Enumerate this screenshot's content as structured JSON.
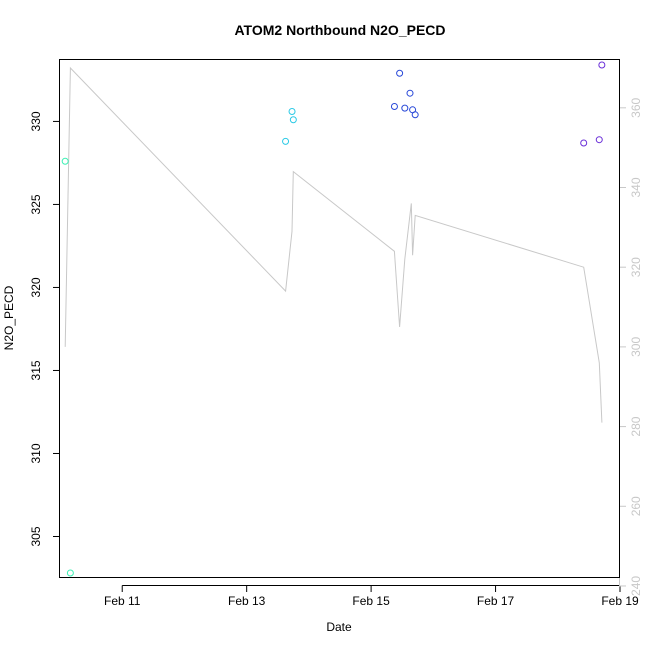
{
  "chart_data": {
    "type": "scatter",
    "title": "ATOM2 Northbound N2O_PECD",
    "xlabel": "Date",
    "ylabel": "N2O_PECD",
    "x_axis": {
      "kind": "date",
      "range": [
        "2016-02-10T00:00",
        "2016-02-19T00:00"
      ],
      "ticks": [
        {
          "value": "2016-02-11T00:00",
          "label": "Feb 11"
        },
        {
          "value": "2016-02-13T00:00",
          "label": "Feb 13"
        },
        {
          "value": "2016-02-15T00:00",
          "label": "Feb 15"
        },
        {
          "value": "2016-02-17T00:00",
          "label": "Feb 17"
        },
        {
          "value": "2016-02-19T00:00",
          "label": "Feb 19"
        }
      ]
    },
    "y_axis": {
      "reversed": true,
      "range": [
        333.7,
        302.5
      ],
      "ticks": [
        305,
        310,
        315,
        320,
        325,
        330
      ]
    },
    "y2_axis": {
      "color": "#c8c8c8",
      "range": [
        242,
        372
      ],
      "ticks": [
        240,
        260,
        280,
        300,
        320,
        340,
        360
      ]
    },
    "points": [
      {
        "x": "2016-02-10T02:00",
        "y": 327.6,
        "color": "#3cf0b4"
      },
      {
        "x": "2016-02-10T04:00",
        "y": 302.8,
        "color": "#3cf0b4"
      },
      {
        "x": "2016-02-13T15:00",
        "y": 328.8,
        "color": "#2ccae6"
      },
      {
        "x": "2016-02-13T17:30",
        "y": 330.6,
        "color": "#2ccae6"
      },
      {
        "x": "2016-02-13T18:00",
        "y": 330.1,
        "color": "#2ccae6"
      },
      {
        "x": "2016-02-15T09:00",
        "y": 330.9,
        "color": "#2848d8"
      },
      {
        "x": "2016-02-15T11:00",
        "y": 332.9,
        "color": "#2848d8"
      },
      {
        "x": "2016-02-15T13:00",
        "y": 330.8,
        "color": "#2848d8"
      },
      {
        "x": "2016-02-15T15:00",
        "y": 331.7,
        "color": "#2848d8"
      },
      {
        "x": "2016-02-15T16:00",
        "y": 330.7,
        "color": "#2848d8"
      },
      {
        "x": "2016-02-15T17:00",
        "y": 330.4,
        "color": "#2848d8"
      },
      {
        "x": "2016-02-18T10:00",
        "y": 328.7,
        "color": "#6a2fd8"
      },
      {
        "x": "2016-02-18T16:00",
        "y": 328.9,
        "color": "#6a2fd8"
      },
      {
        "x": "2016-02-18T17:00",
        "y": 333.4,
        "color": "#6a2fd8"
      }
    ],
    "line": {
      "color": "#c8c8c8",
      "axis": "y2",
      "points": [
        {
          "x": "2016-02-10T02:00",
          "y": 300
        },
        {
          "x": "2016-02-10T04:00",
          "y": 370
        },
        {
          "x": "2016-02-13T15:00",
          "y": 314
        },
        {
          "x": "2016-02-13T17:30",
          "y": 329
        },
        {
          "x": "2016-02-13T18:00",
          "y": 344
        },
        {
          "x": "2016-02-15T09:00",
          "y": 324
        },
        {
          "x": "2016-02-15T11:00",
          "y": 305
        },
        {
          "x": "2016-02-15T13:00",
          "y": 322
        },
        {
          "x": "2016-02-15T15:30",
          "y": 336
        },
        {
          "x": "2016-02-15T16:00",
          "y": 323
        },
        {
          "x": "2016-02-15T17:00",
          "y": 333
        },
        {
          "x": "2016-02-18T10:00",
          "y": 320
        },
        {
          "x": "2016-02-18T16:00",
          "y": 296
        },
        {
          "x": "2016-02-18T17:00",
          "y": 281
        }
      ]
    },
    "grid": false,
    "legend": "none"
  }
}
